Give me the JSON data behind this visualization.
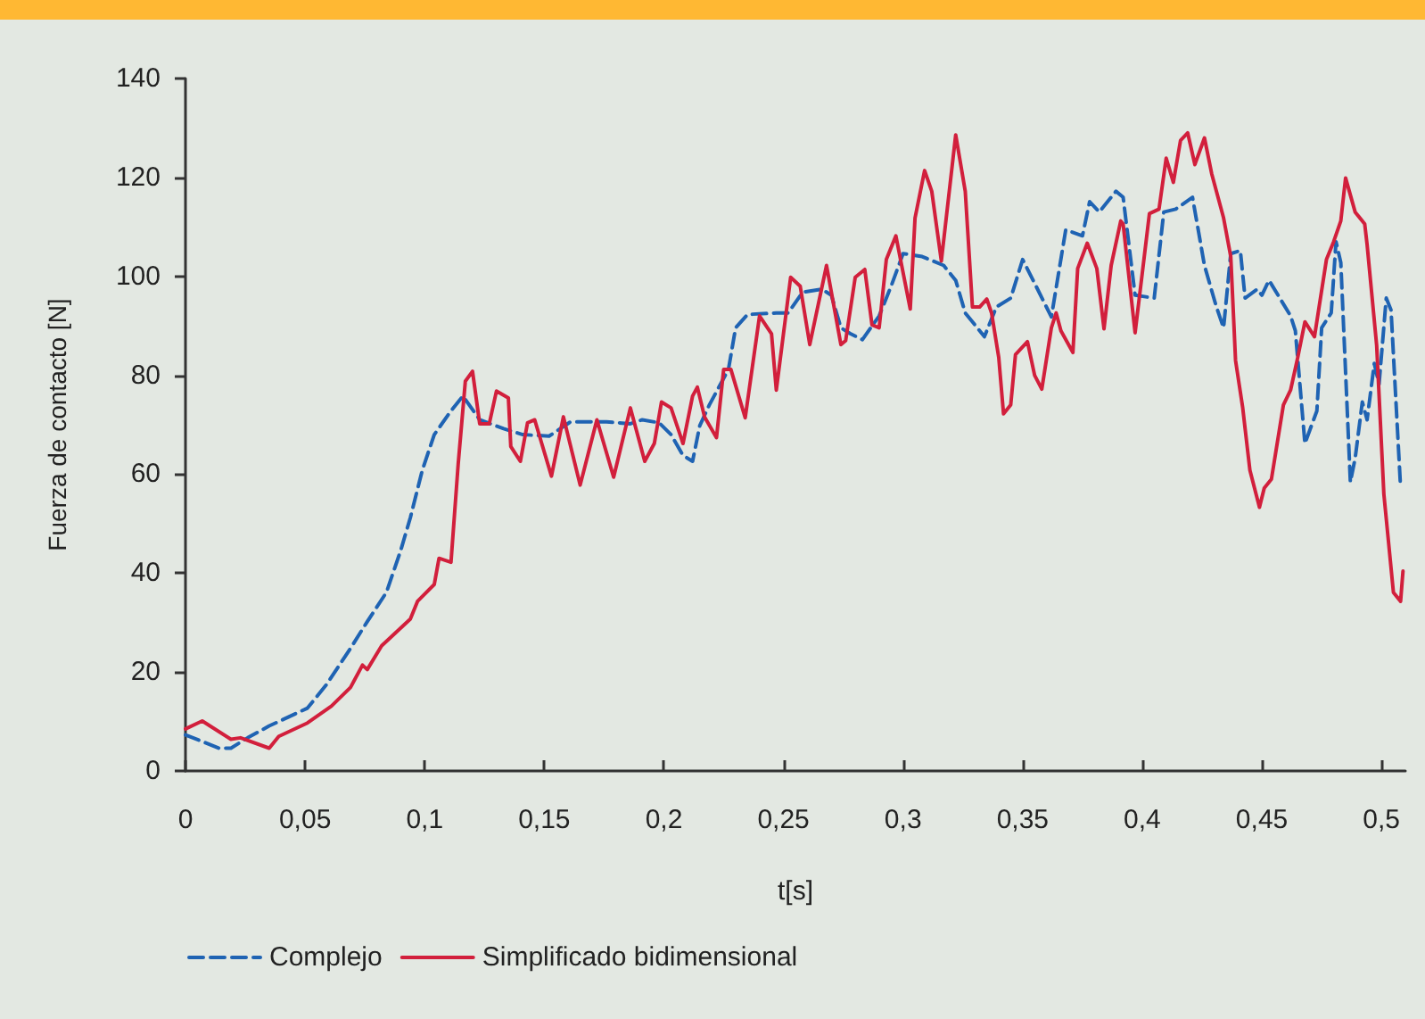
{
  "chart_data": {
    "type": "line",
    "xlabel": "t[s]",
    "ylabel": "Fuerza de contacto [N]",
    "xlim": [
      0,
      0.51
    ],
    "ylim": [
      0,
      140
    ],
    "xticks": [
      0,
      {
        "value": 0.05,
        "label": "0,05"
      },
      {
        "value": 0.1,
        "label": "0,1"
      },
      {
        "value": 0.15,
        "label": "0,15"
      },
      {
        "value": 0.2,
        "label": "0,2"
      },
      {
        "value": 0.25,
        "label": "0,25"
      },
      {
        "value": 0.3,
        "label": "0,3"
      },
      {
        "value": 0.35,
        "label": "0,35"
      },
      {
        "value": 0.4,
        "label": "0,4"
      },
      {
        "value": 0.45,
        "label": "0,45"
      },
      {
        "value": 0.5,
        "label": "0,5"
      }
    ],
    "yticks": [
      0,
      20,
      40,
      60,
      80,
      100,
      120,
      140
    ],
    "grid": false,
    "legend": "bottom left",
    "marker": "none",
    "series": [
      {
        "name": "Complejo",
        "color": "#1f63b3",
        "line_style": "dashed",
        "x": [
          0,
          0.014,
          0.019,
          0.026,
          0.035,
          0.051,
          0.059,
          0.069,
          0.076,
          0.084,
          0.09,
          0.094,
          0.099,
          0.104,
          0.111,
          0.116,
          0.123,
          0.133,
          0.141,
          0.152,
          0.161,
          0.176,
          0.186,
          0.191,
          0.198,
          0.203,
          0.208,
          0.212,
          0.215,
          0.219,
          0.227,
          0.23,
          0.235,
          0.247,
          0.252,
          0.258,
          0.266,
          0.27,
          0.274,
          0.278,
          0.283,
          0.29,
          0.295,
          0.3,
          0.308,
          0.317,
          0.322,
          0.326,
          0.334,
          0.339,
          0.345,
          0.35,
          0.355,
          0.362,
          0.368,
          0.375,
          0.378,
          0.382,
          0.389,
          0.392,
          0.397,
          0.405,
          0.409,
          0.414,
          0.421,
          0.426,
          0.431,
          0.434,
          0.437,
          0.441,
          0.443,
          0.448,
          0.45,
          0.453,
          0.462,
          0.464,
          0.468,
          0.473,
          0.475,
          0.479,
          0.481,
          0.483,
          0.487,
          0.489,
          0.492,
          0.494,
          0.497,
          0.499,
          0.502,
          0.504,
          0.508
        ],
        "values": [
          7.3,
          4.6,
          4.6,
          6.7,
          9.1,
          12.7,
          17.5,
          24.8,
          30.2,
          36.1,
          44.6,
          51.2,
          60.8,
          68,
          72.8,
          75.8,
          71,
          69.2,
          68,
          67.7,
          70.6,
          70.6,
          70.2,
          71,
          70.4,
          68,
          63.8,
          62.6,
          69.8,
          74,
          81.2,
          89.6,
          92.3,
          92.6,
          92.6,
          96.8,
          97.4,
          96.2,
          89.6,
          88.4,
          87.2,
          92,
          98,
          104.6,
          104,
          102.2,
          99.2,
          92.6,
          87.8,
          93.8,
          95.6,
          103.4,
          98.6,
          91.8,
          109.4,
          108.2,
          115.1,
          113,
          117.2,
          116,
          96.2,
          95.6,
          113,
          113.6,
          116,
          102.2,
          93.8,
          89.6,
          104.6,
          105.2,
          95.6,
          97.4,
          96.2,
          99.2,
          92,
          89,
          66.2,
          72.8,
          89.6,
          92.6,
          107,
          102.8,
          58.4,
          63.2,
          74.6,
          71,
          82.4,
          78.2,
          95.6,
          93.2,
          57.2
        ]
      },
      {
        "name": "Simplificado bidimensional",
        "color": "#d21f3c",
        "line_style": "solid",
        "x": [
          0,
          0.007,
          0.019,
          0.023,
          0.035,
          0.039,
          0.051,
          0.061,
          0.069,
          0.074,
          0.076,
          0.082,
          0.09,
          0.094,
          0.097,
          0.104,
          0.106,
          0.111,
          0.114,
          0.117,
          0.12,
          0.123,
          0.127,
          0.13,
          0.135,
          0.136,
          0.14,
          0.143,
          0.146,
          0.153,
          0.158,
          0.165,
          0.172,
          0.179,
          0.186,
          0.192,
          0.196,
          0.199,
          0.203,
          0.208,
          0.212,
          0.214,
          0.217,
          0.222,
          0.225,
          0.228,
          0.234,
          0.24,
          0.245,
          0.247,
          0.253,
          0.257,
          0.261,
          0.268,
          0.274,
          0.276,
          0.28,
          0.284,
          0.287,
          0.29,
          0.293,
          0.297,
          0.303,
          0.305,
          0.309,
          0.312,
          0.316,
          0.322,
          0.326,
          0.329,
          0.332,
          0.335,
          0.337,
          0.34,
          0.342,
          0.345,
          0.347,
          0.352,
          0.355,
          0.358,
          0.362,
          0.364,
          0.366,
          0.371,
          0.373,
          0.377,
          0.381,
          0.384,
          0.387,
          0.391,
          0.392,
          0.397,
          0.403,
          0.407,
          0.41,
          0.413,
          0.416,
          0.419,
          0.422,
          0.426,
          0.429,
          0.434,
          0.437,
          0.439,
          0.442,
          0.445,
          0.449,
          0.451,
          0.454,
          0.459,
          0.462,
          0.465,
          0.468,
          0.472,
          0.477,
          0.48,
          0.483,
          0.485,
          0.489,
          0.493,
          0.494,
          0.498,
          0.501,
          0.505,
          0.508,
          0.509
        ],
        "values": [
          8.5,
          10.1,
          6.4,
          6.7,
          4.6,
          7,
          9.7,
          13.1,
          16.9,
          21.4,
          20.5,
          25.3,
          28.9,
          30.7,
          34.3,
          37.7,
          43,
          42.2,
          62,
          78.8,
          80.8,
          70.2,
          70.2,
          76.8,
          75.4,
          65.6,
          62.6,
          70.4,
          71,
          59.6,
          71.6,
          57.8,
          71,
          59.4,
          73.4,
          62.6,
          66.2,
          74.6,
          73.4,
          66.2,
          75.8,
          77.6,
          71.6,
          67.4,
          81.2,
          81.2,
          71.4,
          92,
          88.4,
          77,
          99.8,
          98,
          86.2,
          102.2,
          86.2,
          87,
          99.8,
          101.4,
          90.2,
          89.6,
          103.4,
          108.2,
          93.4,
          111.8,
          121.4,
          117.2,
          103.1,
          128.6,
          117.2,
          93.8,
          93.8,
          95.4,
          92.6,
          83.6,
          72.2,
          74,
          84.2,
          86.8,
          80,
          77.2,
          89.6,
          92.6,
          89,
          84.6,
          101.6,
          106.7,
          101.6,
          89.4,
          102.2,
          111.2,
          110.6,
          88.6,
          112.7,
          113.6,
          123.9,
          119,
          127.5,
          129,
          122.6,
          128,
          120.8,
          111.8,
          104,
          83,
          73.4,
          60.8,
          53.3,
          57.2,
          59,
          74,
          77,
          83.6,
          90.8,
          87.8,
          103.4,
          107,
          111.2,
          119.9,
          113,
          110.6,
          106.4,
          86,
          56,
          36.1,
          34.3,
          40.4
        ]
      }
    ]
  }
}
